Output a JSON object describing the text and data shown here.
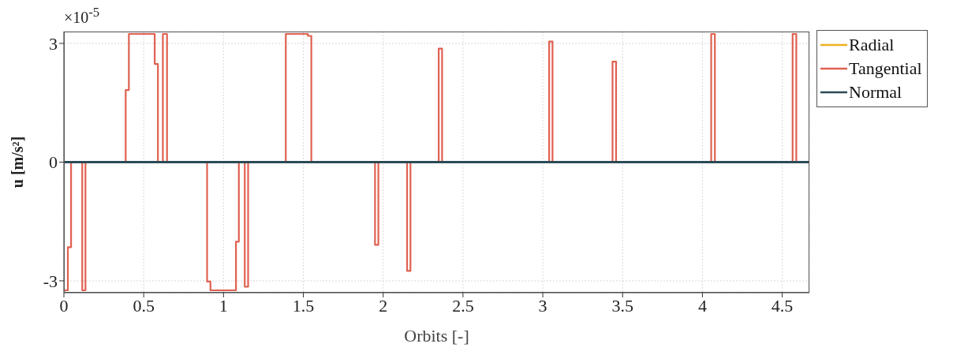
{
  "chart_data": {
    "type": "step",
    "xlabel": "Orbits [-]",
    "ylabel": "u [m/s²]",
    "annotations": [
      "×10$^{-5}$"
    ],
    "xlim": [
      0,
      4.67
    ],
    "xticks": [
      0,
      0.5,
      1,
      1.5,
      2,
      2.5,
      3,
      3.5,
      4,
      4.5
    ],
    "ylim": [
      -3.3,
      3.3
    ],
    "yticks": [
      -3,
      0,
      3
    ],
    "grid": true,
    "legend": "top right",
    "series": [
      {
        "name": "Radial",
        "color": "#edb120"
      },
      {
        "name": "Tangential",
        "color": "#e06050",
        "x": [
          0,
          0.025,
          0.045,
          0.115,
          0.135,
          0.387,
          0.407,
          0.569,
          0.589,
          0.62,
          0.646,
          0.897,
          0.918,
          1.078,
          1.096,
          1.133,
          1.154,
          1.39,
          1.528,
          1.55,
          1.949,
          1.97,
          2.15,
          2.171,
          2.348,
          2.369,
          3.04,
          3.061,
          3.437,
          3.459,
          4.055,
          4.078,
          4.565,
          4.588,
          4.67
        ],
        "values": [
          -3.24,
          -2.15,
          0,
          -3.24,
          0,
          1.82,
          3.24,
          2.48,
          0,
          3.24,
          0,
          -3.02,
          -3.24,
          -2.01,
          0,
          -3.15,
          0,
          3.24,
          3.19,
          0,
          -2.09,
          0,
          -2.75,
          0,
          2.87,
          0,
          3.05,
          0,
          2.54,
          0,
          3.24,
          0,
          3.24,
          0,
          0
        ]
      },
      {
        "name": "Normal",
        "color": "#2b4a56",
        "x": [
          0,
          4.67
        ],
        "values": [
          0,
          0
        ]
      }
    ]
  }
}
